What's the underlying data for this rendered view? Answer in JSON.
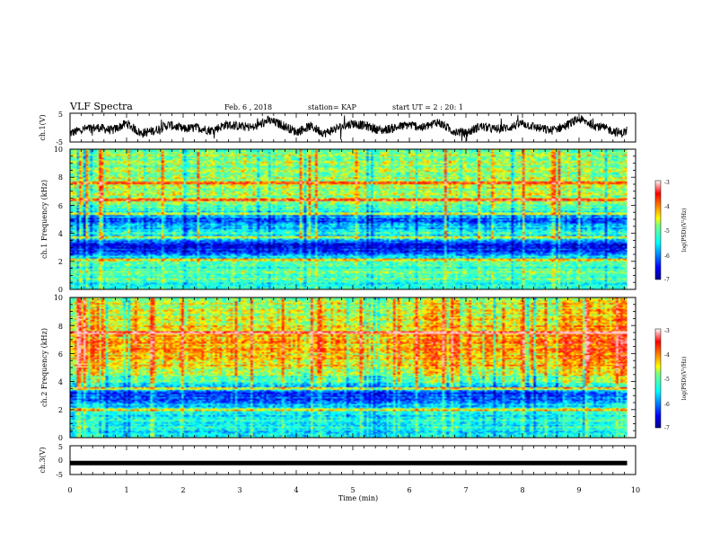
{
  "header": {
    "title": "VLF Spectra",
    "date": "Feb. 6 , 2018",
    "station": "station= KAP",
    "start_ut": "start UT = 2 : 20: 1"
  },
  "chart_data": [
    {
      "type": "line",
      "panel": "ch1-waveform",
      "ylabel": "ch.1(V)",
      "ylim": [
        -5,
        5
      ],
      "yticks": [
        "5",
        "-5"
      ],
      "xlim": [
        0,
        10
      ],
      "x": [
        0,
        0.25,
        0.5,
        0.75,
        1.0,
        1.25,
        1.5,
        1.75,
        2.0,
        2.25,
        2.5,
        2.75,
        3.0,
        3.25,
        3.5,
        3.75,
        4.0,
        4.25,
        4.5,
        4.75,
        5.0,
        5.25,
        5.5,
        5.75,
        6.0,
        6.25,
        6.5,
        6.75,
        7.0,
        7.25,
        7.5,
        7.75,
        8.0,
        8.25,
        8.5,
        8.75,
        9.0,
        9.25,
        9.5,
        9.75,
        9.85
      ],
      "values": [
        -2,
        -0.5,
        0,
        -1,
        1.5,
        -2,
        -1,
        1,
        -0.5,
        0,
        -1,
        1,
        0.5,
        0,
        2.5,
        1,
        -1.5,
        0.5,
        -2,
        0,
        1.5,
        0.5,
        -1,
        0,
        1,
        0,
        2,
        -1,
        -2,
        0.5,
        -0.5,
        0,
        1.5,
        0,
        -1,
        0.5,
        3,
        1,
        -0.5,
        -2,
        -1
      ]
    },
    {
      "type": "heatmap",
      "panel": "ch1-spectrogram",
      "ylabel": "ch.1 Frequency (kHz)",
      "ylim": [
        0,
        10
      ],
      "xlim": [
        0,
        9.85
      ],
      "yticks": [
        "0",
        "2",
        "4",
        "6",
        "8",
        "10"
      ],
      "colorbar": {
        "label": "log(PSD)(V²/Hz)",
        "range": [
          -7,
          -3
        ],
        "ticks": [
          "-3",
          "-4",
          "-5",
          "-6",
          "-7"
        ]
      },
      "frequency_kHz": [
        0,
        1,
        2,
        3,
        4,
        5,
        6,
        7,
        8,
        9,
        10
      ],
      "mean_log_psd": [
        -5.5,
        -5.0,
        -5.2,
        -6.7,
        -5.3,
        -6.2,
        -4.9,
        -4.7,
        -4.8,
        -4.8,
        -4.9
      ],
      "tones_kHz": [
        2.1,
        3.7,
        5.4,
        6.4,
        7.6
      ]
    },
    {
      "type": "heatmap",
      "panel": "ch2-spectrogram",
      "ylabel": "ch.2 Frequency (kHz)",
      "ylim": [
        0,
        10
      ],
      "xlim": [
        0,
        9.85
      ],
      "yticks": [
        "0",
        "2",
        "4",
        "6",
        "8",
        "10"
      ],
      "colorbar": {
        "label": "log(PSD)(V²/Hz)",
        "range": [
          -7,
          -3
        ],
        "ticks": [
          "-3",
          "-4",
          "-5",
          "-6",
          "-7"
        ]
      },
      "frequency_kHz": [
        0,
        1,
        2,
        3,
        4,
        5,
        6,
        7,
        8,
        9,
        10
      ],
      "mean_log_psd": [
        -5.6,
        -5.4,
        -5.5,
        -6.4,
        -5.2,
        -4.5,
        -4.2,
        -4.1,
        -4.5,
        -4.6,
        -4.8
      ],
      "tones_kHz": [
        2.0,
        3.5,
        7.5
      ]
    },
    {
      "type": "line",
      "panel": "ch3-waveform",
      "ylabel": "ch.3(V)",
      "ylim": [
        -5,
        5
      ],
      "yticks": [
        "5",
        "0",
        "-5"
      ],
      "xlim": [
        0,
        10
      ],
      "x": [
        0,
        9.85
      ],
      "values": [
        -1,
        -1
      ]
    }
  ],
  "xaxis": {
    "label": "Time (min)",
    "ticks": [
      "0",
      "1",
      "2",
      "3",
      "4",
      "5",
      "6",
      "7",
      "8",
      "9",
      "10"
    ]
  }
}
